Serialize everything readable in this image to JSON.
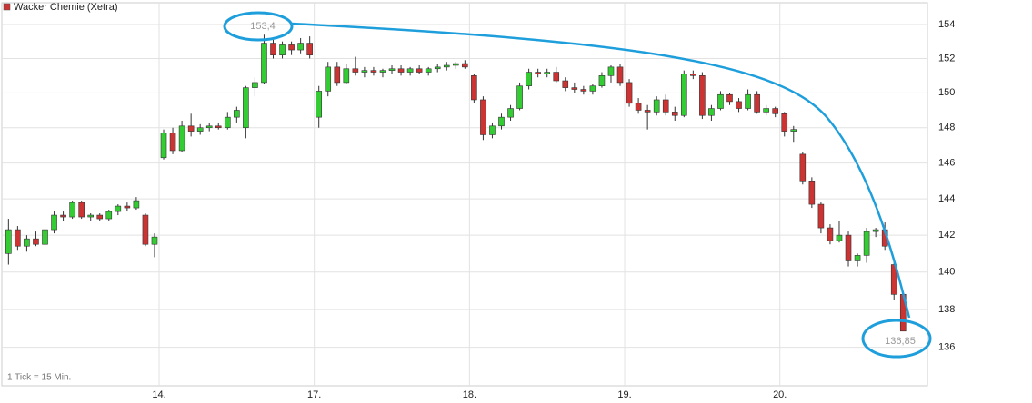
{
  "chart_data": {
    "type": "candlestick",
    "legend": "Wacker Chemie (Xetra)",
    "note": "1 Tick = 15 Min.",
    "annotations": [
      "153,4",
      "136,85"
    ],
    "log_scale": true,
    "grid": true,
    "up_color": "#33cc33",
    "down_color": "#cc3333",
    "ylim": [
      134,
      155.3
    ],
    "yticks": [
      136,
      138,
      140,
      142,
      144,
      146,
      148,
      150,
      152,
      154
    ],
    "categories": [
      null,
      null,
      null,
      null,
      null,
      null,
      null,
      null,
      null,
      null,
      null,
      null,
      null,
      null,
      null,
      null,
      null,
      "14.",
      null,
      null,
      null,
      null,
      null,
      null,
      null,
      null,
      null,
      null,
      null,
      null,
      null,
      null,
      null,
      null,
      "17.",
      null,
      null,
      null,
      null,
      null,
      null,
      null,
      null,
      null,
      null,
      null,
      null,
      null,
      null,
      null,
      null,
      "18.",
      null,
      null,
      null,
      null,
      null,
      null,
      null,
      null,
      null,
      null,
      null,
      null,
      null,
      null,
      null,
      null,
      "19.",
      null,
      null,
      null,
      null,
      null,
      null,
      null,
      null,
      null,
      null,
      null,
      null,
      null,
      null,
      null,
      null,
      "20.",
      null,
      null,
      null,
      null,
      null,
      null,
      null,
      null,
      null,
      null,
      null,
      null,
      null
    ],
    "series": [
      {
        "name": "Wacker Chemie (Xetra)",
        "values": [
          [
            141.0,
            142.9,
            140.4,
            142.3
          ],
          [
            142.3,
            142.5,
            141.2,
            141.4
          ],
          [
            141.4,
            142.0,
            141.1,
            141.8
          ],
          [
            141.8,
            142.2,
            141.4,
            141.5
          ],
          [
            141.5,
            142.4,
            141.4,
            142.3
          ],
          [
            142.3,
            143.3,
            142.1,
            143.1
          ],
          [
            143.1,
            143.3,
            142.8,
            143.0
          ],
          [
            143.0,
            143.9,
            142.9,
            143.8
          ],
          [
            143.8,
            143.9,
            142.9,
            143.0
          ],
          [
            143.0,
            143.2,
            142.8,
            143.1
          ],
          [
            143.1,
            143.2,
            142.8,
            142.9
          ],
          [
            142.9,
            143.4,
            142.8,
            143.3
          ],
          [
            143.3,
            143.7,
            143.1,
            143.6
          ],
          [
            143.6,
            143.8,
            143.3,
            143.5
          ],
          [
            143.5,
            144.1,
            143.4,
            143.9
          ],
          [
            143.1,
            143.2,
            141.4,
            141.5
          ],
          [
            141.5,
            142.1,
            140.8,
            141.9
          ],
          [
            146.3,
            147.9,
            146.2,
            147.7
          ],
          [
            147.7,
            148.0,
            146.5,
            146.7
          ],
          [
            146.7,
            148.4,
            146.6,
            148.1
          ],
          [
            148.1,
            148.8,
            147.5,
            147.8
          ],
          [
            147.8,
            148.2,
            147.6,
            148.0
          ],
          [
            148.0,
            148.3,
            147.8,
            148.1
          ],
          [
            148.1,
            148.3,
            147.9,
            148.0
          ],
          [
            148.0,
            148.9,
            147.9,
            148.6
          ],
          [
            148.6,
            149.2,
            148.3,
            149.0
          ],
          [
            148.0,
            150.4,
            147.4,
            150.3
          ],
          [
            150.3,
            150.9,
            149.8,
            150.6
          ],
          [
            150.6,
            153.4,
            150.5,
            152.9
          ],
          [
            152.9,
            153.1,
            152.0,
            152.2
          ],
          [
            152.2,
            153.0,
            152.0,
            152.8
          ],
          [
            152.8,
            153.0,
            152.2,
            152.5
          ],
          [
            152.5,
            153.2,
            152.3,
            152.9
          ],
          [
            152.9,
            153.3,
            152.0,
            152.2
          ],
          [
            148.6,
            150.4,
            148.0,
            150.1
          ],
          [
            150.1,
            151.8,
            149.8,
            151.5
          ],
          [
            151.5,
            151.8,
            150.4,
            150.6
          ],
          [
            150.6,
            151.7,
            150.5,
            151.4
          ],
          [
            151.4,
            152.1,
            151.0,
            151.2
          ],
          [
            151.2,
            151.5,
            150.9,
            151.3
          ],
          [
            151.3,
            151.5,
            151.0,
            151.2
          ],
          [
            151.2,
            151.4,
            150.9,
            151.3
          ],
          [
            151.3,
            151.6,
            151.1,
            151.4
          ],
          [
            151.4,
            151.6,
            151.0,
            151.2
          ],
          [
            151.2,
            151.5,
            151.0,
            151.4
          ],
          [
            151.4,
            151.6,
            151.1,
            151.2
          ],
          [
            151.2,
            151.5,
            151.0,
            151.4
          ],
          [
            151.4,
            151.7,
            151.2,
            151.5
          ],
          [
            151.5,
            151.8,
            151.3,
            151.6
          ],
          [
            151.6,
            151.8,
            151.4,
            151.7
          ],
          [
            151.7,
            151.9,
            151.4,
            151.5
          ],
          [
            151.0,
            151.1,
            149.4,
            149.6
          ],
          [
            149.6,
            149.8,
            147.3,
            147.6
          ],
          [
            147.6,
            148.3,
            147.4,
            148.1
          ],
          [
            148.1,
            148.8,
            147.9,
            148.6
          ],
          [
            148.6,
            149.3,
            148.4,
            149.1
          ],
          [
            149.1,
            150.6,
            149.0,
            150.4
          ],
          [
            150.4,
            151.4,
            150.2,
            151.2
          ],
          [
            151.2,
            151.4,
            150.9,
            151.1
          ],
          [
            151.1,
            151.4,
            150.9,
            151.2
          ],
          [
            151.2,
            151.5,
            150.6,
            150.7
          ],
          [
            150.7,
            150.9,
            150.1,
            150.3
          ],
          [
            150.3,
            150.6,
            150.0,
            150.2
          ],
          [
            150.2,
            150.4,
            149.9,
            150.1
          ],
          [
            150.1,
            150.5,
            149.9,
            150.4
          ],
          [
            150.4,
            151.2,
            150.3,
            151.0
          ],
          [
            151.0,
            151.6,
            150.6,
            151.5
          ],
          [
            151.5,
            151.7,
            150.4,
            150.6
          ],
          [
            150.6,
            150.8,
            149.2,
            149.4
          ],
          [
            149.4,
            149.7,
            148.8,
            149.0
          ],
          [
            149.0,
            149.3,
            147.9,
            148.9
          ],
          [
            148.9,
            149.8,
            148.7,
            149.6
          ],
          [
            149.6,
            149.9,
            148.7,
            148.9
          ],
          [
            148.9,
            149.2,
            148.4,
            148.7
          ],
          [
            148.7,
            151.3,
            148.6,
            151.1
          ],
          [
            151.1,
            151.3,
            150.8,
            151.0
          ],
          [
            151.0,
            151.2,
            148.5,
            148.7
          ],
          [
            148.7,
            149.3,
            148.4,
            149.1
          ],
          [
            149.1,
            150.1,
            149.0,
            149.9
          ],
          [
            149.9,
            150.0,
            149.3,
            149.5
          ],
          [
            149.5,
            149.7,
            148.9,
            149.1
          ],
          [
            149.1,
            150.2,
            149.0,
            149.9
          ],
          [
            149.9,
            150.1,
            148.8,
            148.9
          ],
          [
            148.9,
            149.3,
            148.7,
            149.1
          ],
          [
            149.1,
            149.2,
            148.6,
            148.8
          ],
          [
            148.8,
            148.9,
            147.5,
            147.8
          ],
          [
            147.8,
            148.1,
            147.2,
            147.9
          ],
          [
            146.5,
            146.6,
            144.8,
            145.0
          ],
          [
            145.0,
            145.2,
            143.5,
            143.7
          ],
          [
            143.7,
            143.8,
            142.1,
            142.4
          ],
          [
            142.4,
            142.6,
            141.5,
            141.7
          ],
          [
            141.7,
            142.8,
            141.6,
            142.0
          ],
          [
            142.0,
            142.2,
            140.3,
            140.6
          ],
          [
            140.6,
            141.0,
            140.3,
            140.9
          ],
          [
            140.9,
            142.4,
            140.5,
            142.2
          ],
          [
            142.2,
            142.4,
            141.9,
            142.3
          ],
          [
            142.3,
            142.7,
            141.2,
            141.4
          ],
          [
            140.4,
            140.5,
            138.5,
            138.8
          ],
          [
            138.8,
            138.9,
            136.9,
            136.85
          ]
        ]
      }
    ]
  }
}
